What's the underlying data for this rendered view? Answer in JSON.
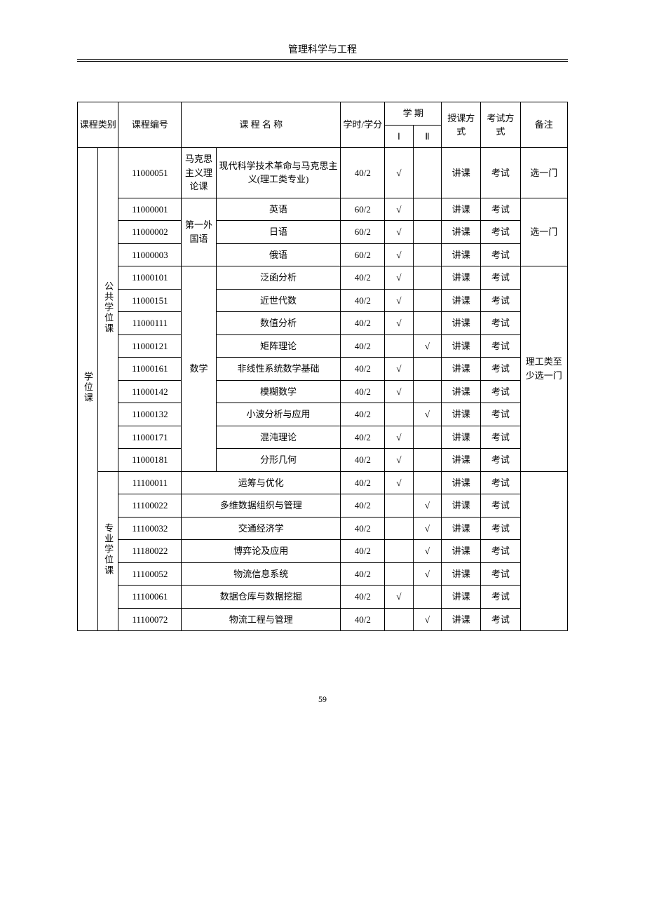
{
  "header": {
    "title": "管理科学与工程"
  },
  "footer": {
    "page_number": "59"
  },
  "table": {
    "head": {
      "category": "课程类别",
      "code": "课程编号",
      "name": "课 程 名 称",
      "credit": "学时/学分",
      "semester": "学  期",
      "sem1": "Ⅰ",
      "sem2": "Ⅱ",
      "teach": "授课方式",
      "exam": "考试方式",
      "note": "备注"
    },
    "groups": {
      "main_category": "学位课",
      "public": {
        "label": "公共学位课"
      },
      "pro": {
        "label": "专业学位课"
      },
      "subgroups": {
        "marx": "马克思主义理论课",
        "lang": "第一外国语",
        "math": "数学"
      },
      "notes": {
        "pick_one_a": "选一门",
        "pick_one_b": "选一门",
        "sci_pick": "理工类至少选一门"
      }
    },
    "rows": [
      {
        "code": "11000051",
        "name": "现代科学技术革命与马克思主义(理工类专业)",
        "credit": "40/2",
        "s1": "√",
        "s2": "",
        "teach": "讲课",
        "exam": "考试"
      },
      {
        "code": "11000001",
        "name": "英语",
        "credit": "60/2",
        "s1": "√",
        "s2": "",
        "teach": "讲课",
        "exam": "考试"
      },
      {
        "code": "11000002",
        "name": "日语",
        "credit": "60/2",
        "s1": "√",
        "s2": "",
        "teach": "讲课",
        "exam": "考试"
      },
      {
        "code": "11000003",
        "name": "俄语",
        "credit": "60/2",
        "s1": "√",
        "s2": "",
        "teach": "讲课",
        "exam": "考试"
      },
      {
        "code": "11000101",
        "name": "泛函分析",
        "credit": "40/2",
        "s1": "√",
        "s2": "",
        "teach": "讲课",
        "exam": "考试"
      },
      {
        "code": "11000151",
        "name": "近世代数",
        "credit": "40/2",
        "s1": "√",
        "s2": "",
        "teach": "讲课",
        "exam": "考试"
      },
      {
        "code": "11000111",
        "name": "数值分析",
        "credit": "40/2",
        "s1": "√",
        "s2": "",
        "teach": "讲课",
        "exam": "考试"
      },
      {
        "code": "11000121",
        "name": "矩阵理论",
        "credit": "40/2",
        "s1": "",
        "s2": "√",
        "teach": "讲课",
        "exam": "考试"
      },
      {
        "code": "11000161",
        "name": "非线性系统数学基础",
        "credit": "40/2",
        "s1": "√",
        "s2": "",
        "teach": "讲课",
        "exam": "考试"
      },
      {
        "code": "11000142",
        "name": "模糊数学",
        "credit": "40/2",
        "s1": "√",
        "s2": "",
        "teach": "讲课",
        "exam": "考试"
      },
      {
        "code": "11000132",
        "name": "小波分析与应用",
        "credit": "40/2",
        "s1": "",
        "s2": "√",
        "teach": "讲课",
        "exam": "考试"
      },
      {
        "code": "11000171",
        "name": "混沌理论",
        "credit": "40/2",
        "s1": "√",
        "s2": "",
        "teach": "讲课",
        "exam": "考试"
      },
      {
        "code": "11000181",
        "name": "分形几何",
        "credit": "40/2",
        "s1": "√",
        "s2": "",
        "teach": "讲课",
        "exam": "考试"
      },
      {
        "code": "11100011",
        "name": "运筹与优化",
        "credit": "40/2",
        "s1": "√",
        "s2": "",
        "teach": "讲课",
        "exam": "考试"
      },
      {
        "code": "11100022",
        "name": "多维数据组织与管理",
        "credit": "40/2",
        "s1": "",
        "s2": "√",
        "teach": "讲课",
        "exam": "考试"
      },
      {
        "code": "11100032",
        "name": "交通经济学",
        "credit": "40/2",
        "s1": "",
        "s2": "√",
        "teach": "讲课",
        "exam": "考试"
      },
      {
        "code": "11180022",
        "name": "博弈论及应用",
        "credit": "40/2",
        "s1": "",
        "s2": "√",
        "teach": "讲课",
        "exam": "考试"
      },
      {
        "code": "11100052",
        "name": "物流信息系统",
        "credit": "40/2",
        "s1": "",
        "s2": "√",
        "teach": "讲课",
        "exam": "考试"
      },
      {
        "code": "11100061",
        "name": "数据仓库与数据挖掘",
        "credit": "40/2",
        "s1": "√",
        "s2": "",
        "teach": "讲课",
        "exam": "考试"
      },
      {
        "code": "11100072",
        "name": "物流工程与管理",
        "credit": "40/2",
        "s1": "",
        "s2": "√",
        "teach": "讲课",
        "exam": "考试"
      }
    ]
  }
}
